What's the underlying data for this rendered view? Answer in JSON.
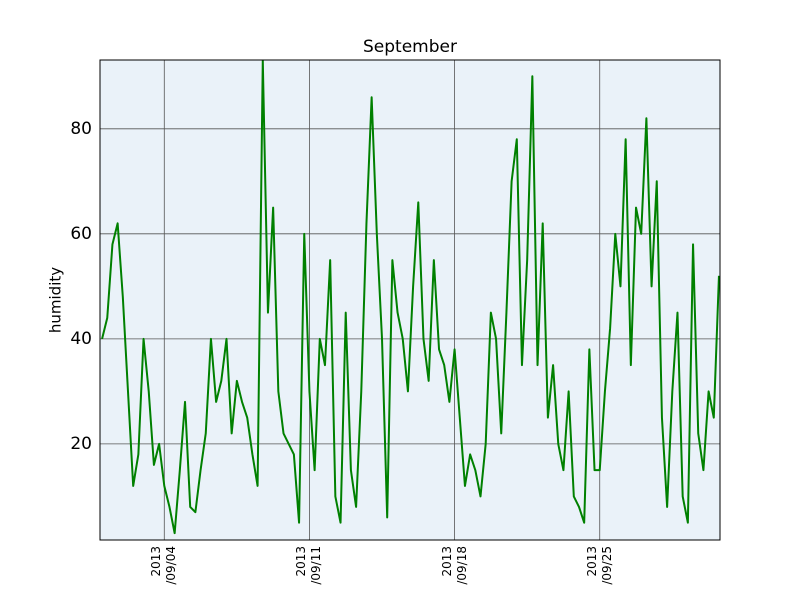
{
  "chart_data": {
    "type": "line",
    "title": "September",
    "ylabel": "humidity",
    "x": [
      1,
      1.25,
      1.5,
      1.75,
      2,
      2.25,
      2.5,
      2.75,
      3,
      3.25,
      3.5,
      3.75,
      4,
      4.25,
      4.5,
      4.75,
      5,
      5.25,
      5.5,
      5.75,
      6,
      6.25,
      6.5,
      6.75,
      7,
      7.25,
      7.5,
      7.75,
      8,
      8.25,
      8.5,
      8.75,
      9,
      9.25,
      9.5,
      9.75,
      10,
      10.25,
      10.5,
      10.75,
      11,
      11.25,
      11.5,
      11.75,
      12,
      12.25,
      12.5,
      12.75,
      13,
      13.25,
      13.5,
      13.75,
      14,
      14.25,
      14.5,
      14.75,
      15,
      15.25,
      15.5,
      15.75,
      16,
      16.25,
      16.5,
      16.75,
      17,
      17.25,
      17.5,
      17.75,
      18,
      18.25,
      18.5,
      18.75,
      19,
      19.25,
      19.5,
      19.75,
      20,
      20.25,
      20.5,
      20.75,
      21,
      21.25,
      21.5,
      21.75,
      22,
      22.25,
      22.5,
      22.75,
      23,
      23.25,
      23.5,
      23.75,
      24,
      24.25,
      24.5,
      24.75,
      25,
      25.25,
      25.5,
      25.75,
      26,
      26.25,
      26.5,
      26.75,
      27,
      27.25,
      27.5,
      27.75,
      28,
      28.25,
      28.5,
      28.75,
      29,
      29.25,
      29.5,
      29.75,
      30,
      30.25,
      30.5,
      30.75
    ],
    "values": [
      40,
      44,
      58,
      62,
      48,
      30,
      12,
      18,
      40,
      30,
      16,
      20,
      12,
      8,
      3,
      15,
      28,
      8,
      7,
      15,
      22,
      40,
      28,
      32,
      40,
      22,
      32,
      28,
      25,
      18,
      12,
      93,
      45,
      65,
      30,
      22,
      20,
      18,
      5,
      60,
      30,
      15,
      40,
      35,
      55,
      10,
      5,
      45,
      15,
      8,
      30,
      62,
      86,
      60,
      40,
      6,
      55,
      45,
      40,
      30,
      50,
      66,
      40,
      32,
      55,
      38,
      35,
      28,
      38,
      25,
      12,
      18,
      15,
      10,
      20,
      45,
      40,
      22,
      45,
      70,
      78,
      35,
      55,
      90,
      35,
      62,
      25,
      35,
      20,
      15,
      30,
      10,
      8,
      5,
      38,
      15,
      15,
      30,
      42,
      60,
      50,
      78,
      35,
      65,
      60,
      82,
      50,
      70,
      25,
      8,
      30,
      45,
      10,
      5,
      58,
      22,
      15,
      30,
      25,
      52
    ],
    "color": "#008000",
    "xlim": [
      0.9,
      30.8
    ],
    "xticks": [
      {
        "value": 4,
        "label": "2013\n/09/04"
      },
      {
        "value": 11,
        "label": "2013\n/09/11"
      },
      {
        "value": 18,
        "label": "2013\n/09/18"
      },
      {
        "value": 25,
        "label": "2013\n/09/25"
      }
    ],
    "ylim": [
      1.7,
      93.1
    ],
    "yticks": [
      20,
      40,
      60,
      80
    ],
    "grid": true
  }
}
